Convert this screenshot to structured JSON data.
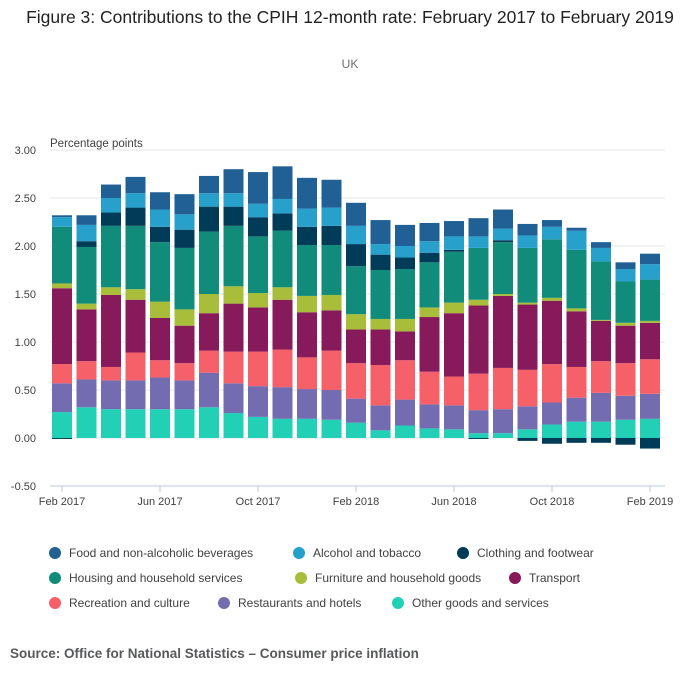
{
  "title": "Figure 3: Contributions to the CPIH 12-month rate: February 2017 to February 2019",
  "subtitle": "UK",
  "source": "Source: Office for National Statistics – Consumer price inflation",
  "chart_data": {
    "type": "bar",
    "stacked": true,
    "title": "Figure 3: Contributions to the CPIH 12-month rate: February 2017 to February 2019",
    "subtitle": "UK",
    "xlabel": "",
    "ylabel": "Percentage points",
    "ylim": [
      -0.5,
      3.0
    ],
    "yticks": [
      "3.00",
      "2.50",
      "2.00",
      "1.50",
      "1.00",
      "0.50",
      "0.00",
      "-0.50"
    ],
    "ytick_values": [
      3.0,
      2.5,
      2.0,
      1.5,
      1.0,
      0.5,
      0.0,
      -0.5
    ],
    "grid": true,
    "legend_position": "bottom",
    "categories": [
      "Feb 2017",
      "Mar 2017",
      "Apr 2017",
      "May 2017",
      "Jun 2017",
      "Jul 2017",
      "Aug 2017",
      "Sep 2017",
      "Oct 2017",
      "Nov 2017",
      "Dec 2017",
      "Jan 2018",
      "Feb 2018",
      "Mar 2018",
      "Apr 2018",
      "May 2018",
      "Jun 2018",
      "Jul 2018",
      "Aug 2018",
      "Sep 2018",
      "Oct 2018",
      "Nov 2018",
      "Dec 2018",
      "Jan 2019",
      "Feb 2019"
    ],
    "xtick_labels": [
      {
        "index": 0,
        "label": "Feb 2017"
      },
      {
        "index": 4,
        "label": "Jun 2017"
      },
      {
        "index": 8,
        "label": "Oct 2017"
      },
      {
        "index": 12,
        "label": "Feb 2018"
      },
      {
        "index": 16,
        "label": "Jun 2018"
      },
      {
        "index": 20,
        "label": "Oct 2018"
      },
      {
        "index": 24,
        "label": "Feb 2019"
      }
    ],
    "series": [
      {
        "name": "Other goods and services",
        "color": "#22d0b6",
        "values": [
          0.27,
          0.32,
          0.3,
          0.3,
          0.3,
          0.3,
          0.32,
          0.26,
          0.22,
          0.2,
          0.2,
          0.19,
          0.16,
          0.08,
          0.13,
          0.1,
          0.09,
          0.05,
          0.05,
          0.09,
          0.14,
          0.17,
          0.17,
          0.19,
          0.2
        ]
      },
      {
        "name": "Restaurants and hotels",
        "color": "#746cb1",
        "values": [
          0.3,
          0.29,
          0.3,
          0.3,
          0.33,
          0.3,
          0.36,
          0.31,
          0.32,
          0.33,
          0.31,
          0.31,
          0.25,
          0.26,
          0.27,
          0.25,
          0.25,
          0.24,
          0.25,
          0.24,
          0.23,
          0.25,
          0.3,
          0.25,
          0.26
        ]
      },
      {
        "name": "Recreation and culture",
        "color": "#f66068",
        "values": [
          0.2,
          0.19,
          0.14,
          0.29,
          0.18,
          0.18,
          0.23,
          0.33,
          0.36,
          0.39,
          0.33,
          0.41,
          0.37,
          0.42,
          0.41,
          0.34,
          0.3,
          0.38,
          0.43,
          0.38,
          0.4,
          0.32,
          0.33,
          0.34,
          0.36
        ]
      },
      {
        "name": "Transport",
        "color": "#871a5b",
        "values": [
          0.79,
          0.54,
          0.75,
          0.55,
          0.44,
          0.39,
          0.39,
          0.5,
          0.46,
          0.52,
          0.47,
          0.42,
          0.35,
          0.37,
          0.3,
          0.57,
          0.66,
          0.71,
          0.75,
          0.68,
          0.66,
          0.58,
          0.42,
          0.39,
          0.38
        ]
      },
      {
        "name": "Furniture and household goods",
        "color": "#a8bd3a",
        "values": [
          0.05,
          0.06,
          0.08,
          0.11,
          0.17,
          0.17,
          0.2,
          0.18,
          0.15,
          0.13,
          0.17,
          0.16,
          0.16,
          0.11,
          0.13,
          0.1,
          0.11,
          0.06,
          0.02,
          0.02,
          0.03,
          0.03,
          0.01,
          0.03,
          0.02
        ]
      },
      {
        "name": "Housing and household services",
        "color": "#118c7b",
        "values": [
          0.59,
          0.59,
          0.64,
          0.66,
          0.62,
          0.64,
          0.65,
          0.63,
          0.59,
          0.59,
          0.53,
          0.52,
          0.5,
          0.51,
          0.52,
          0.47,
          0.53,
          0.54,
          0.54,
          0.57,
          0.61,
          0.61,
          0.61,
          0.43,
          0.43
        ]
      },
      {
        "name": "Clothing and footwear",
        "color": "#003c57",
        "values": [
          -0.01,
          0.06,
          0.14,
          0.19,
          0.16,
          0.19,
          0.26,
          0.2,
          0.2,
          0.18,
          0.19,
          0.2,
          0.23,
          0.16,
          0.12,
          0.1,
          0.02,
          -0.01,
          0.02,
          -0.03,
          -0.06,
          -0.05,
          -0.05,
          -0.07,
          -0.11
        ]
      },
      {
        "name": "Alcohol and tobacco",
        "color": "#27a0cc",
        "values": [
          0.1,
          0.17,
          0.15,
          0.15,
          0.18,
          0.16,
          0.14,
          0.14,
          0.14,
          0.15,
          0.19,
          0.19,
          0.19,
          0.11,
          0.12,
          0.12,
          0.14,
          0.12,
          0.12,
          0.13,
          0.13,
          0.2,
          0.14,
          0.13,
          0.16
        ]
      },
      {
        "name": "Food and non-alcoholic beverages",
        "color": "#206095",
        "values": [
          0.02,
          0.1,
          0.14,
          0.17,
          0.18,
          0.21,
          0.18,
          0.25,
          0.33,
          0.34,
          0.32,
          0.29,
          0.24,
          0.25,
          0.22,
          0.19,
          0.16,
          0.19,
          0.2,
          0.12,
          0.07,
          0.03,
          0.06,
          0.07,
          0.11
        ]
      }
    ]
  },
  "legend": [
    [
      {
        "label": "Food and non-alcoholic beverages",
        "color": "#206095"
      },
      {
        "label": "Alcohol and tobacco",
        "color": "#27a0cc"
      },
      {
        "label": "Clothing and footwear",
        "color": "#003c57"
      }
    ],
    [
      {
        "label": "Housing and household services",
        "color": "#118c7b"
      },
      {
        "label": "Furniture and household goods",
        "color": "#a8bd3a"
      },
      {
        "label": "Transport",
        "color": "#871a5b"
      }
    ],
    [
      {
        "label": "Recreation and culture",
        "color": "#f66068"
      },
      {
        "label": "Restaurants and hotels",
        "color": "#746cb1"
      },
      {
        "label": "Other goods and services",
        "color": "#22d0b6"
      }
    ]
  ]
}
